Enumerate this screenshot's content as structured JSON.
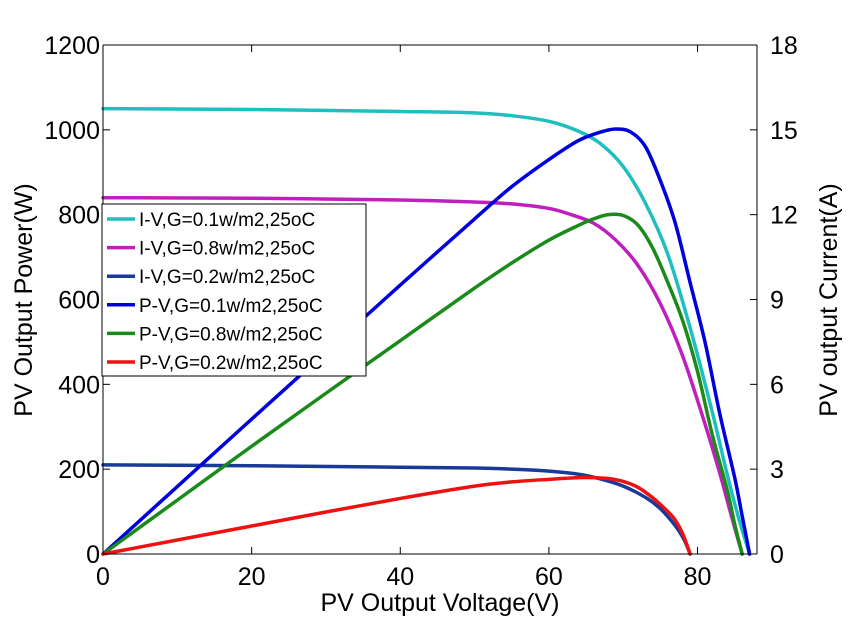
{
  "chart_data": {
    "type": "line",
    "x_axis": {
      "label": "PV Output Voltage(V)",
      "range": [
        0,
        88
      ],
      "ticks": [
        0,
        20,
        40,
        60,
        80
      ]
    },
    "y_left_axis": {
      "label": "PV Output Power(W)",
      "range": [
        0,
        1200
      ],
      "ticks": [
        0,
        200,
        400,
        600,
        800,
        1000,
        1200
      ]
    },
    "y_right_axis": {
      "label": "PV output Current(A)",
      "range": [
        0,
        18
      ],
      "ticks": [
        0,
        3,
        6,
        9,
        12,
        15,
        18
      ]
    },
    "grid": false,
    "legend": {
      "placement": "middle-left"
    },
    "series": [
      {
        "name": "I-V,G=0.1w/m2,25oC",
        "axis": "right",
        "color": "#1fbfbf",
        "points": [
          [
            0,
            15.75
          ],
          [
            20,
            15.72
          ],
          [
            40,
            15.65
          ],
          [
            50,
            15.6
          ],
          [
            55,
            15.5
          ],
          [
            60,
            15.3
          ],
          [
            64,
            14.95
          ],
          [
            67,
            14.5
          ],
          [
            70,
            13.7
          ],
          [
            73,
            12.4
          ],
          [
            76,
            10.6
          ],
          [
            79,
            8.0
          ],
          [
            82,
            5.0
          ],
          [
            84,
            2.8
          ],
          [
            85.5,
            1.3
          ],
          [
            87,
            0
          ]
        ]
      },
      {
        "name": "I-V,G=0.8w/m2,25oC",
        "axis": "right",
        "color": "#bf1fbf",
        "points": [
          [
            0,
            12.6
          ],
          [
            20,
            12.58
          ],
          [
            40,
            12.52
          ],
          [
            50,
            12.45
          ],
          [
            55,
            12.38
          ],
          [
            60,
            12.22
          ],
          [
            63,
            12.0
          ],
          [
            66,
            11.7
          ],
          [
            69,
            11.1
          ],
          [
            72,
            10.2
          ],
          [
            75,
            8.85
          ],
          [
            78,
            7.0
          ],
          [
            81,
            4.6
          ],
          [
            83,
            2.85
          ],
          [
            84.5,
            1.4
          ],
          [
            86,
            0
          ]
        ]
      },
      {
        "name": "I-V,G=0.2w/m2,25oC",
        "axis": "right",
        "color": "#1a3a9a",
        "points": [
          [
            0,
            3.15
          ],
          [
            20,
            3.12
          ],
          [
            40,
            3.07
          ],
          [
            50,
            3.04
          ],
          [
            55,
            3.0
          ],
          [
            60,
            2.93
          ],
          [
            64,
            2.82
          ],
          [
            67,
            2.65
          ],
          [
            70,
            2.4
          ],
          [
            73,
            2.0
          ],
          [
            75,
            1.6
          ],
          [
            77,
            1.0
          ],
          [
            78.2,
            0.5
          ],
          [
            79,
            0
          ]
        ]
      },
      {
        "name": "P-V,G=0.1w/m2,25oC",
        "axis": "left",
        "color": "#0000dd",
        "points": [
          [
            0,
            0
          ],
          [
            10,
            159
          ],
          [
            20,
            318
          ],
          [
            30,
            476
          ],
          [
            40,
            634
          ],
          [
            50,
            790
          ],
          [
            55,
            866
          ],
          [
            60,
            930
          ],
          [
            64,
            975
          ],
          [
            67,
            995
          ],
          [
            69,
            1002
          ],
          [
            71,
            995
          ],
          [
            73,
            960
          ],
          [
            75,
            880
          ],
          [
            77,
            780
          ],
          [
            79,
            640
          ],
          [
            81,
            500
          ],
          [
            83,
            330
          ],
          [
            85,
            180
          ],
          [
            86,
            90
          ],
          [
            87,
            0
          ]
        ]
      },
      {
        "name": "P-V,G=0.8w/m2,25oC",
        "axis": "left",
        "color": "#1a8a1a",
        "points": [
          [
            0,
            0
          ],
          [
            10,
            127
          ],
          [
            20,
            254
          ],
          [
            30,
            379
          ],
          [
            40,
            503
          ],
          [
            50,
            627
          ],
          [
            55,
            686
          ],
          [
            60,
            740
          ],
          [
            64,
            775
          ],
          [
            66,
            790
          ],
          [
            68,
            800
          ],
          [
            70,
            798
          ],
          [
            72,
            775
          ],
          [
            74,
            720
          ],
          [
            76,
            640
          ],
          [
            78,
            550
          ],
          [
            80,
            430
          ],
          [
            82,
            280
          ],
          [
            84,
            150
          ],
          [
            85,
            70
          ],
          [
            86,
            0
          ]
        ]
      },
      {
        "name": "P-V,G=0.2w/m2,25oC",
        "axis": "left",
        "color": "#ee1111",
        "points": [
          [
            0,
            0
          ],
          [
            10,
            33
          ],
          [
            20,
            66
          ],
          [
            30,
            99
          ],
          [
            40,
            131
          ],
          [
            50,
            160
          ],
          [
            55,
            170
          ],
          [
            60,
            176
          ],
          [
            64,
            180
          ],
          [
            66,
            180
          ],
          [
            68,
            178
          ],
          [
            70,
            171
          ],
          [
            72,
            157
          ],
          [
            74,
            132
          ],
          [
            76,
            100
          ],
          [
            77,
            80
          ],
          [
            78,
            48
          ],
          [
            79,
            0
          ]
        ]
      }
    ]
  }
}
